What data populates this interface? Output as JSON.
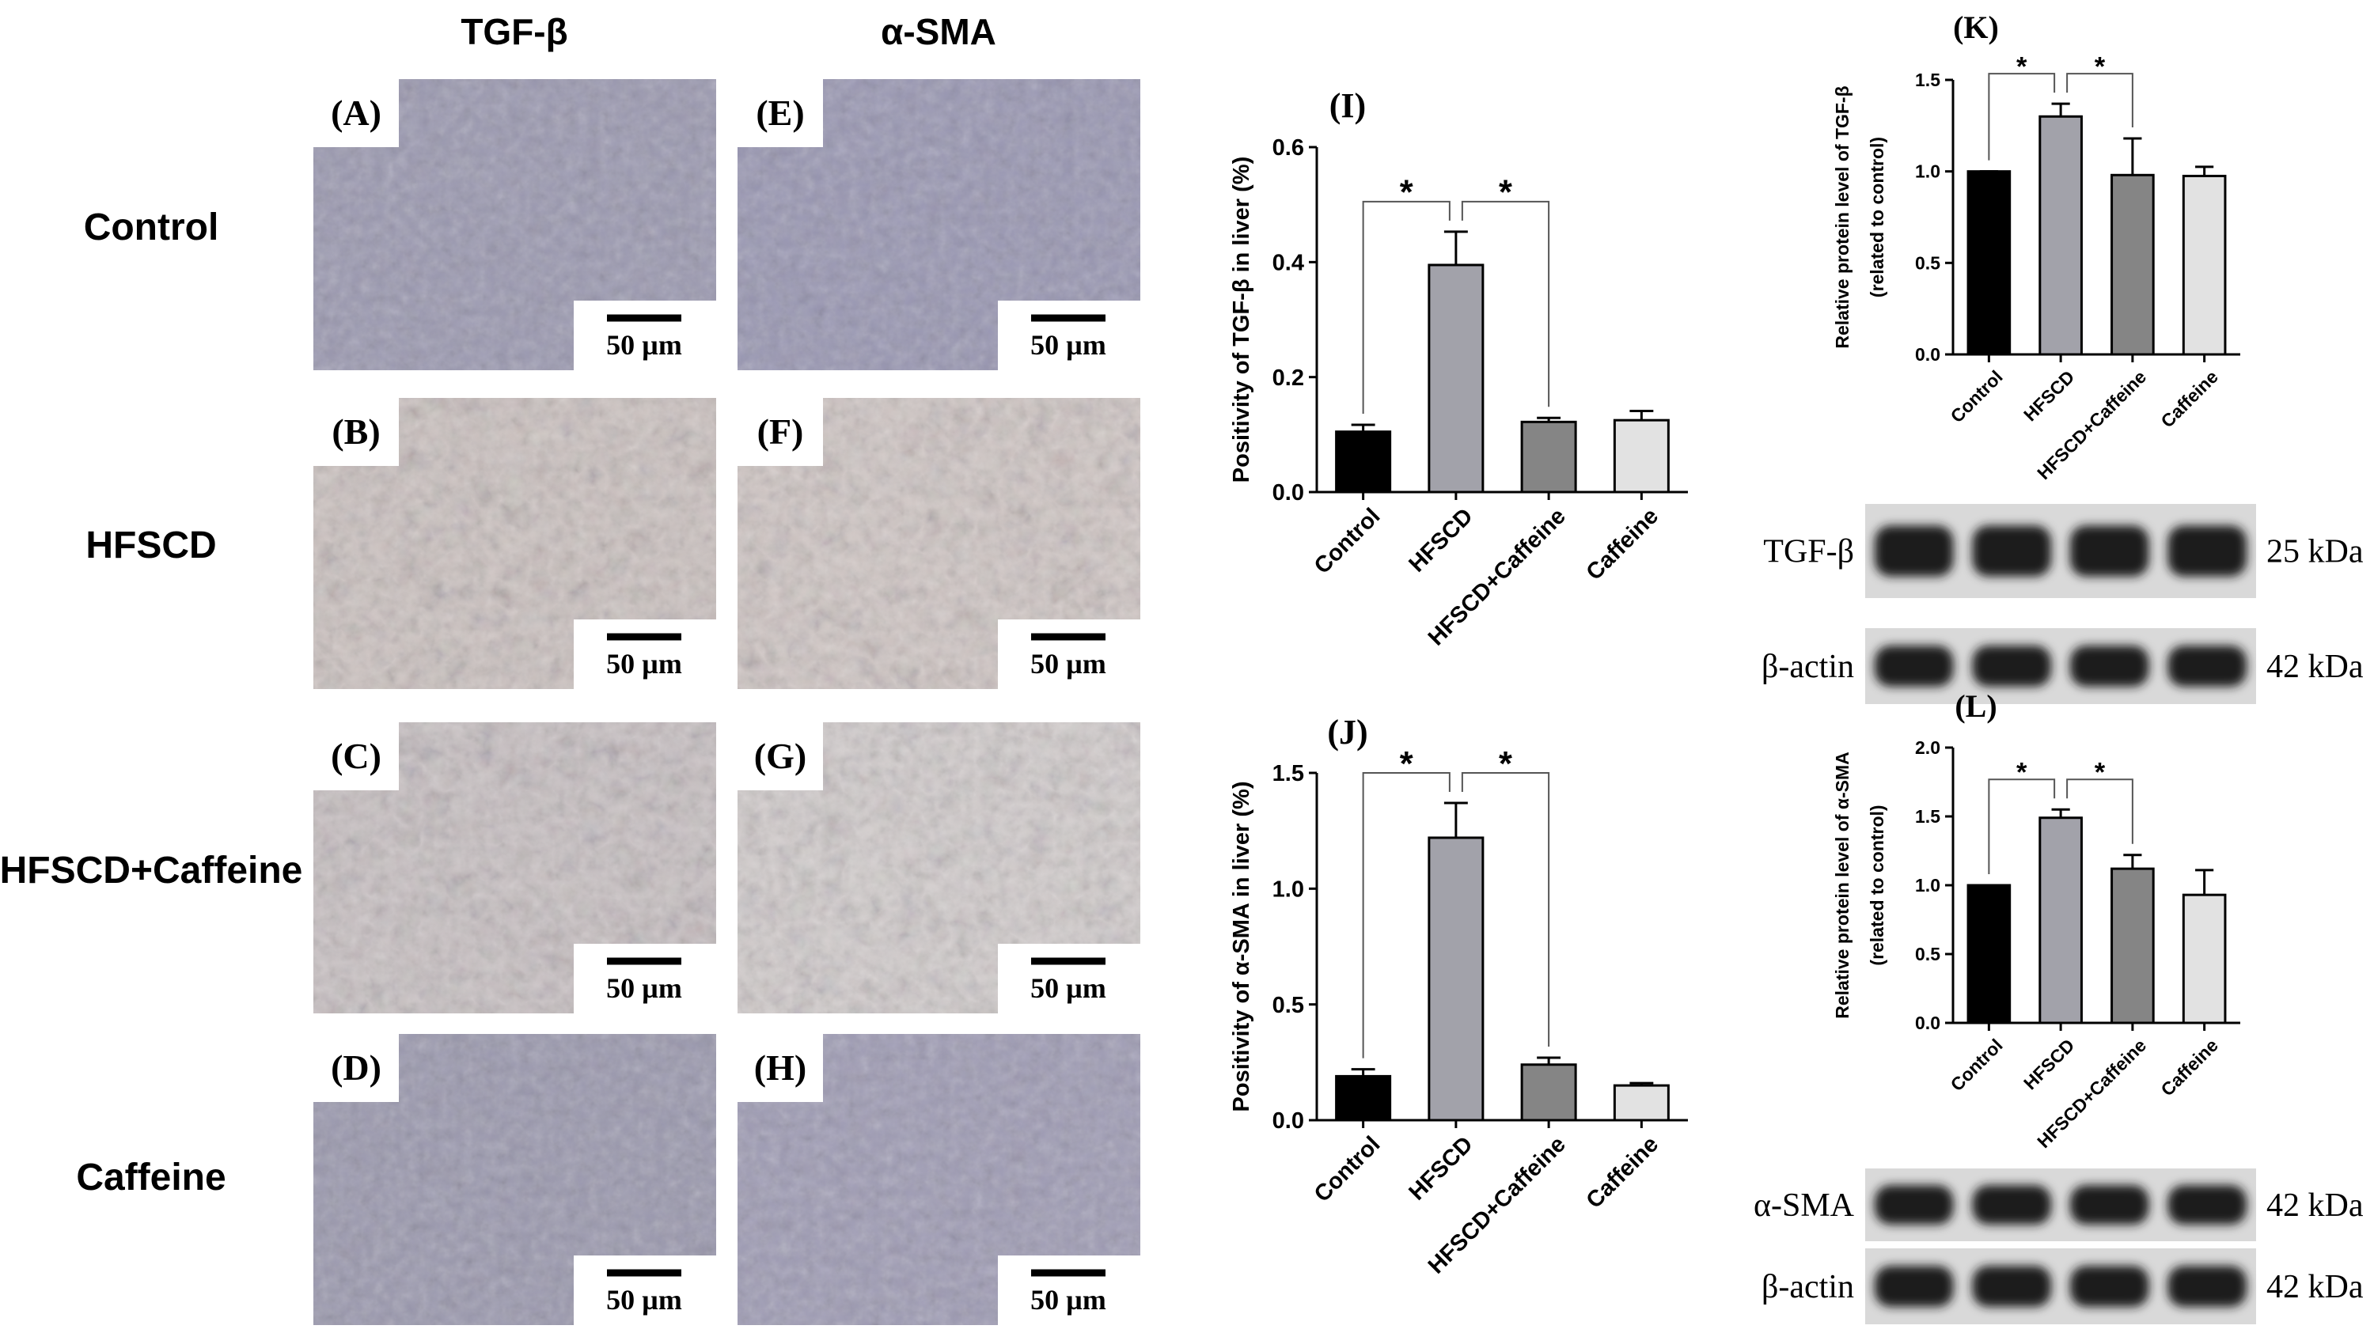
{
  "micrographs": {
    "columns": [
      "TGF-β",
      "α-SMA"
    ],
    "rows": [
      "Control",
      "HFSCD",
      "HFSCD+Caffeine",
      "Caffeine"
    ],
    "panels": [
      [
        "(A)",
        "(E)"
      ],
      [
        "(B)",
        "(F)"
      ],
      [
        "(C)",
        "(G)"
      ],
      [
        "(D)",
        "(H)"
      ]
    ],
    "scale_bar": "50 µm"
  },
  "blots": [
    {
      "rows": [
        {
          "label": "TGF-β",
          "size": "25 kDa"
        },
        {
          "label": "β-actin",
          "size": "42 kDa"
        }
      ]
    },
    {
      "rows": [
        {
          "label": "α-SMA",
          "size": "42 kDa"
        },
        {
          "label": "β-actin",
          "size": "42 kDa"
        }
      ]
    }
  ],
  "chart_data": [
    {
      "type": "bar",
      "title": "(I)",
      "y_label": "Positivity of TGF-β in liver (%)",
      "categories": [
        "Control",
        "HFSCD",
        "HFSCD+Caffeine",
        "Caffeine"
      ],
      "values": [
        0.105,
        0.395,
        0.122,
        0.125
      ],
      "errors": [
        0.012,
        0.058,
        0.007,
        0.016
      ],
      "colors": [
        "#000000",
        "#a2a2aa",
        "#858585",
        "#e2e2e2"
      ],
      "ylim": [
        0,
        0.6
      ],
      "yticks": [
        {
          "value": 0,
          "label": "0.0"
        },
        0.2,
        0.4,
        0.6
      ],
      "annotations": [
        "*",
        "*"
      ]
    },
    {
      "type": "bar",
      "title": "(J)",
      "y_label": "Positivity of α-SMA in liver (%)",
      "categories": [
        "Control",
        "HFSCD",
        "HFSCD+Caffeine",
        "Caffeine"
      ],
      "values": [
        0.19,
        1.22,
        0.24,
        0.15
      ],
      "errors": [
        0.03,
        0.15,
        0.03,
        0.01
      ],
      "colors": [
        "#000000",
        "#a2a2aa",
        "#858585",
        "#e2e2e2"
      ],
      "ylim": [
        0,
        1.5
      ],
      "yticks": [
        {
          "value": 0,
          "label": "0.0"
        },
        0.5,
        {
          "value": 1,
          "label": "1.0"
        },
        1.5
      ],
      "annotations": [
        "*",
        "*"
      ]
    },
    {
      "type": "bar",
      "title": "(K)",
      "y_label": [
        "Relative protein level of TGF-β",
        "(related to control)"
      ],
      "categories": [
        "Control",
        "HFSCD",
        "HFSCD+Caffeine",
        "Caffeine"
      ],
      "values": [
        1.0,
        1.3,
        0.98,
        0.975
      ],
      "errors": [
        0,
        0.07,
        0.2,
        0.05
      ],
      "colors": [
        "#000000",
        "#a2a2aa",
        "#858585",
        "#e2e2e2"
      ],
      "ylim": [
        0,
        1.5
      ],
      "yticks": [
        {
          "value": 0,
          "label": "0.0"
        },
        0.5,
        {
          "value": 1,
          "label": "1.0"
        },
        1.5
      ],
      "annotations": [
        "*",
        "*"
      ]
    },
    {
      "type": "bar",
      "title": "(L)",
      "y_label": [
        "Relative protein level of α-SMA",
        "(related to control)"
      ],
      "categories": [
        "Control",
        "HFSCD",
        "HFSCD+Caffeine",
        "Caffeine"
      ],
      "values": [
        1.0,
        1.49,
        1.12,
        0.93
      ],
      "errors": [
        0,
        0.06,
        0.1,
        0.18
      ],
      "colors": [
        "#000000",
        "#a2a2aa",
        "#858585",
        "#e2e2e2"
      ],
      "ylim": [
        0,
        2
      ],
      "yticks": [
        {
          "value": 0,
          "label": "0.0"
        },
        0.5,
        {
          "value": 1,
          "label": "1.0"
        },
        1.5,
        {
          "value": 2,
          "label": "2.0"
        }
      ],
      "annotations": [
        "*",
        "*"
      ]
    }
  ]
}
